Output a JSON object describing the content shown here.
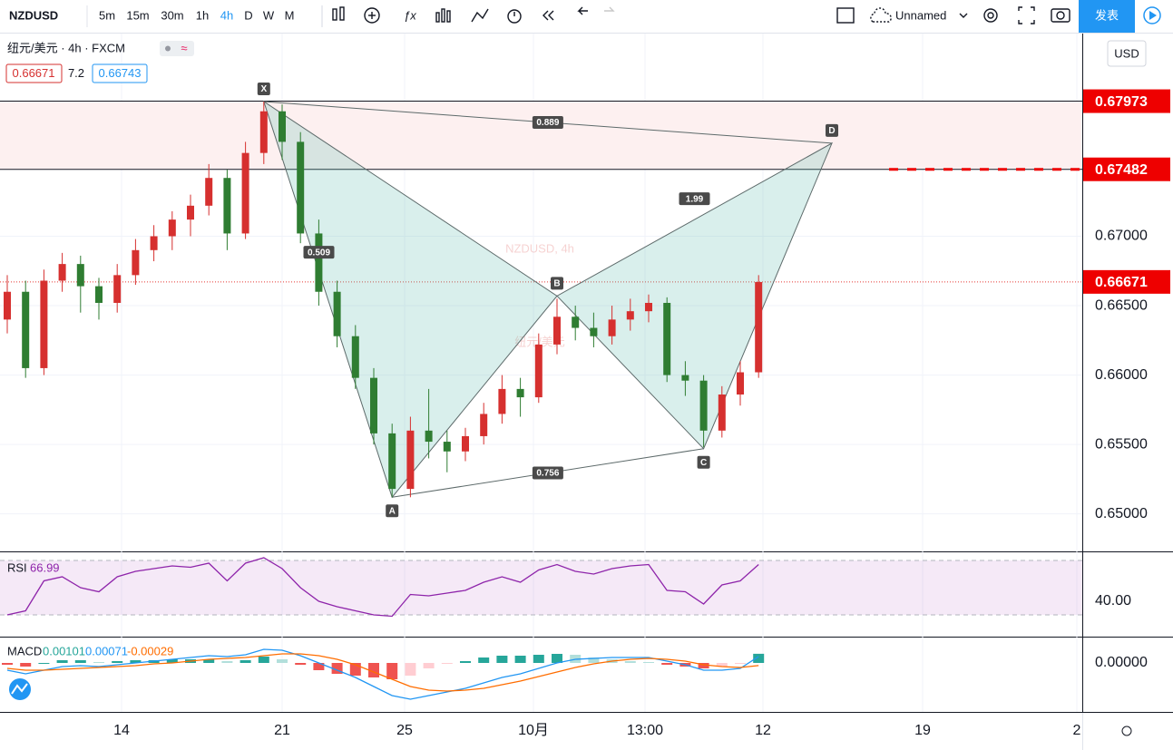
{
  "toolbar": {
    "symbol": "NZDUSD",
    "intervals": [
      "5m",
      "15m",
      "30m",
      "1h",
      "4h",
      "D",
      "W",
      "M"
    ],
    "active_interval": 4,
    "layout_name": "Unnamed",
    "publish": "发表"
  },
  "legend": {
    "title": "纽元/美元 · 4h · FXCM",
    "bid": "0.66671",
    "spread": "7.2",
    "ask": "0.66743"
  },
  "currency": "USD",
  "watermark": {
    "line1": "NZDUSD, 4h",
    "line2": "纽元/美元"
  },
  "time_axis": [
    "14",
    "21",
    "25",
    "10月",
    "13:00",
    "12",
    "19",
    "2"
  ],
  "chart_data": {
    "type": "candlestick",
    "up_color": "#d6302f",
    "down_color": "#2f7d32",
    "ylim": [
      0.6473,
      0.6846
    ],
    "yticks": [
      {
        "value": 0.65,
        "label": "0.65000"
      },
      {
        "value": 0.655,
        "label": "0.65500"
      },
      {
        "value": 0.66,
        "label": "0.66000"
      },
      {
        "value": 0.665,
        "label": "0.66500"
      },
      {
        "value": 0.67,
        "label": "0.67000"
      }
    ],
    "price_labels": [
      {
        "value": 0.67973,
        "label": "0.67973"
      },
      {
        "value": 0.67482,
        "label": "0.67482"
      },
      {
        "value": 0.66671,
        "label": "0.66671"
      }
    ],
    "candles": [
      [
        0.664,
        0.6672,
        0.663,
        0.666
      ],
      [
        0.666,
        0.6668,
        0.6598,
        0.6605
      ],
      [
        0.6605,
        0.6676,
        0.66,
        0.6668
      ],
      [
        0.6668,
        0.6688,
        0.666,
        0.668
      ],
      [
        0.668,
        0.6686,
        0.6645,
        0.6664
      ],
      [
        0.6664,
        0.667,
        0.664,
        0.6652
      ],
      [
        0.6652,
        0.668,
        0.6645,
        0.6672
      ],
      [
        0.6672,
        0.6698,
        0.6665,
        0.669
      ],
      [
        0.669,
        0.6708,
        0.6682,
        0.67
      ],
      [
        0.67,
        0.6718,
        0.669,
        0.6712
      ],
      [
        0.6712,
        0.673,
        0.67,
        0.6722
      ],
      [
        0.6722,
        0.6752,
        0.6715,
        0.6742
      ],
      [
        0.6742,
        0.6748,
        0.669,
        0.6702
      ],
      [
        0.6702,
        0.6768,
        0.6698,
        0.676
      ],
      [
        0.676,
        0.6797,
        0.6752,
        0.679
      ],
      [
        0.679,
        0.6795,
        0.6755,
        0.6768
      ],
      [
        0.6768,
        0.6775,
        0.6695,
        0.6702
      ],
      [
        0.6702,
        0.6712,
        0.665,
        0.666
      ],
      [
        0.666,
        0.6668,
        0.662,
        0.6628
      ],
      [
        0.6628,
        0.6636,
        0.659,
        0.6598
      ],
      [
        0.6598,
        0.6605,
        0.655,
        0.6558
      ],
      [
        0.6558,
        0.6565,
        0.6512,
        0.6518
      ],
      [
        0.6518,
        0.657,
        0.6512,
        0.656
      ],
      [
        0.656,
        0.659,
        0.654,
        0.6552
      ],
      [
        0.6552,
        0.656,
        0.653,
        0.6545
      ],
      [
        0.6545,
        0.6562,
        0.6538,
        0.6556
      ],
      [
        0.6556,
        0.658,
        0.655,
        0.6572
      ],
      [
        0.6572,
        0.66,
        0.6565,
        0.659
      ],
      [
        0.659,
        0.6598,
        0.657,
        0.6584
      ],
      [
        0.6584,
        0.663,
        0.658,
        0.6622
      ],
      [
        0.6622,
        0.6655,
        0.6615,
        0.6642
      ],
      [
        0.6642,
        0.665,
        0.6625,
        0.6634
      ],
      [
        0.6634,
        0.6645,
        0.662,
        0.6628
      ],
      [
        0.6628,
        0.665,
        0.6622,
        0.664
      ],
      [
        0.664,
        0.6655,
        0.6632,
        0.6646
      ],
      [
        0.6646,
        0.6658,
        0.6638,
        0.6652
      ],
      [
        0.6652,
        0.6656,
        0.6595,
        0.66
      ],
      [
        0.66,
        0.661,
        0.6585,
        0.6596
      ],
      [
        0.6596,
        0.66,
        0.6548,
        0.656
      ],
      [
        0.656,
        0.6592,
        0.6555,
        0.6586
      ],
      [
        0.6586,
        0.661,
        0.6578,
        0.6602
      ],
      [
        0.6602,
        0.6672,
        0.6598,
        0.6667
      ]
    ],
    "pattern": {
      "points": [
        {
          "label": "X",
          "bar": 14,
          "price": 0.6797
        },
        {
          "label": "A",
          "bar": 21,
          "price": 0.6512
        },
        {
          "label": "B",
          "bar": 30,
          "price": 0.6657
        },
        {
          "label": "C",
          "bar": 38,
          "price": 0.6547
        },
        {
          "label": "D",
          "bar": 45,
          "price": 0.6767
        }
      ],
      "ratios": [
        "0.509",
        "0.889",
        "1.99",
        "0.756"
      ]
    },
    "rsi": {
      "name": "RSI",
      "value_label": "66.99",
      "ylim": [
        14,
        76
      ],
      "yticks": [
        {
          "value": 40,
          "label": "40.00"
        }
      ],
      "bands": [
        30,
        70
      ],
      "color": "#8e24aa",
      "values": [
        30,
        33,
        55,
        58,
        50,
        47,
        58,
        62,
        64,
        66,
        65,
        68,
        55,
        68,
        72,
        64,
        50,
        40,
        36,
        33,
        30,
        29,
        45,
        44,
        46,
        48,
        54,
        58,
        54,
        63,
        67,
        62,
        60,
        64,
        66,
        67,
        48,
        47,
        38,
        52,
        55,
        66.99
      ]
    },
    "macd": {
      "name": "MACD",
      "labels": [
        "0.00101",
        "0.00071",
        "-0.00029"
      ],
      "ylim": [
        -0.0054,
        0.0028
      ],
      "yticks": [
        {
          "value": 0,
          "label": "0.00000"
        }
      ],
      "macd_color": "#2196f3",
      "signal_color": "#ff6d00",
      "macd": [
        -0.0008,
        -0.0012,
        -0.0008,
        -0.0004,
        -0.0003,
        -0.0004,
        -0.0002,
        0,
        0.0002,
        0.0004,
        0.0006,
        0.0008,
        0.0007,
        0.0009,
        0.0015,
        0.0014,
        0.0008,
        0,
        -0.0008,
        -0.0016,
        -0.0026,
        -0.0036,
        -0.004,
        -0.0036,
        -0.0032,
        -0.0028,
        -0.0022,
        -0.0016,
        -0.0012,
        -0.0006,
        0,
        0.0004,
        0.0005,
        0.0006,
        0.0006,
        0.0006,
        0.0002,
        -0.0002,
        -0.0008,
        -0.0008,
        -0.0006,
        0.00071
      ],
      "signal": [
        -0.0006,
        -0.0008,
        -0.0008,
        -0.0007,
        -0.0006,
        -0.0005,
        -0.0004,
        -0.0003,
        -0.0001,
        0,
        0.0002,
        0.0004,
        0.0005,
        0.0006,
        0.0008,
        0.001,
        0.001,
        0.0008,
        0.0004,
        -0.0002,
        -0.001,
        -0.0018,
        -0.0026,
        -0.003,
        -0.0031,
        -0.003,
        -0.0028,
        -0.0024,
        -0.002,
        -0.0015,
        -0.001,
        -0.0005,
        -0.0001,
        0.0002,
        0.0004,
        0.0005,
        0.0004,
        0.0002,
        -0.0002,
        -0.0004,
        -0.0005,
        -0.00029
      ],
      "hist": [
        -0.0002,
        -0.0004,
        0,
        0.0003,
        0.0003,
        0.0001,
        0.0002,
        0.0003,
        0.0003,
        0.0004,
        0.0004,
        0.0004,
        0.0002,
        0.0003,
        0.0007,
        0.0004,
        -0.0002,
        -0.0008,
        -0.0012,
        -0.0014,
        -0.0016,
        -0.0018,
        -0.0014,
        -0.0006,
        -0.0001,
        0.0002,
        0.0006,
        0.0008,
        0.0008,
        0.0009,
        0.001,
        0.0009,
        0.0006,
        0.0004,
        0.0002,
        0.0001,
        -0.0002,
        -0.0004,
        -0.0006,
        -0.0004,
        -0.0001,
        0.00101
      ]
    }
  }
}
